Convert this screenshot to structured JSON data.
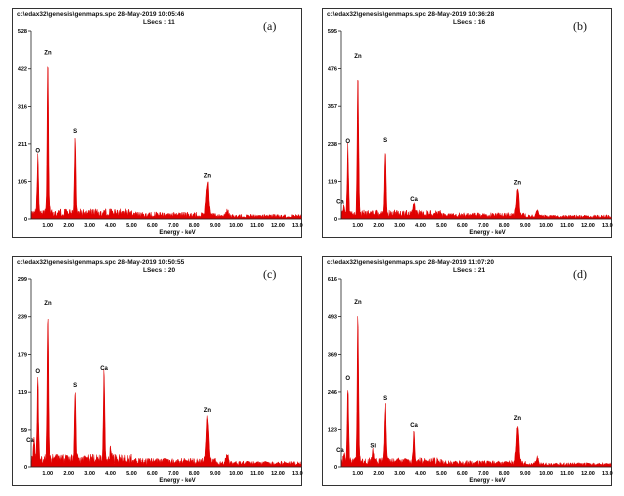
{
  "chart_data": [
    {
      "type": "line",
      "id": "a",
      "panel_label": "(a)",
      "file": "c:\\edax32\\genesis\\genmaps.spc",
      "date": "28-May-2019 10:05:46",
      "lsecs_label": "LSecs : 11",
      "xlabel": "Energy - keV",
      "ylabel": "",
      "xlim": [
        0.2,
        13.1
      ],
      "ylim": [
        0,
        528
      ],
      "yticks": [
        "0",
        "105",
        "211",
        "316",
        "422",
        "528"
      ],
      "xticks": [
        "1.00",
        "2.00",
        "3.00",
        "4.00",
        "5.00",
        "6.00",
        "7.00",
        "8.00",
        "9.00",
        "10.00",
        "11.00",
        "12.00",
        "13.00"
      ],
      "background": 14,
      "peaks": [
        {
          "label": "O",
          "energy": 0.52,
          "counts": 170
        },
        {
          "label": "Zn",
          "energy": 1.01,
          "counts": 445
        },
        {
          "label": "S",
          "energy": 2.31,
          "counts": 225
        },
        {
          "label": "Zn",
          "energy": 8.63,
          "counts": 100
        },
        {
          "label": "",
          "energy": 9.57,
          "counts": 18
        }
      ]
    },
    {
      "type": "line",
      "id": "b",
      "panel_label": "(b)",
      "file": "c:\\edax32\\genesis\\genmaps.spc",
      "date": "28-May-2019 10:36:28",
      "lsecs_label": "LSecs : 16",
      "xlabel": "Energy - keV",
      "ylabel": "",
      "xlim": [
        0.2,
        13.1
      ],
      "ylim": [
        0,
        595
      ],
      "yticks": [
        "0",
        "119",
        "238",
        "357",
        "476",
        "595"
      ],
      "xticks": [
        "1.00",
        "2.00",
        "3.00",
        "4.00",
        "5.00",
        "6.00",
        "7.00",
        "8.00",
        "9.00",
        "10.00",
        "11.00",
        "12.00",
        "13.00"
      ],
      "background": 14,
      "peaks": [
        {
          "label": "Ca",
          "energy": 0.34,
          "counts": 30
        },
        {
          "label": "O",
          "energy": 0.52,
          "counts": 222
        },
        {
          "label": "Zn",
          "energy": 1.01,
          "counts": 490
        },
        {
          "label": "S",
          "energy": 2.31,
          "counts": 225
        },
        {
          "label": "Ca",
          "energy": 3.69,
          "counts": 38
        },
        {
          "label": "Zn",
          "energy": 8.63,
          "counts": 90
        },
        {
          "label": "",
          "energy": 9.57,
          "counts": 20
        }
      ]
    },
    {
      "type": "line",
      "id": "c",
      "panel_label": "(c)",
      "file": "c:\\edax32\\genesis\\genmaps.spc",
      "date": "28-May-2019 10:50:55",
      "lsecs_label": "LSecs : 20",
      "xlabel": "Energy - keV",
      "ylabel": "",
      "xlim": [
        0.2,
        13.1
      ],
      "ylim": [
        0,
        299
      ],
      "yticks": [
        "0",
        "59",
        "119",
        "179",
        "239",
        "299"
      ],
      "xticks": [
        "1.00",
        "2.00",
        "3.00",
        "4.00",
        "5.00",
        "6.00",
        "7.00",
        "8.00",
        "9.00",
        "10.00",
        "11.00",
        "12.00",
        "13.00"
      ],
      "background": 10,
      "peaks": [
        {
          "label": "Ca",
          "energy": 0.34,
          "counts": 30
        },
        {
          "label": "O",
          "energy": 0.52,
          "counts": 140
        },
        {
          "label": "Zn",
          "energy": 1.01,
          "counts": 248
        },
        {
          "label": "S",
          "energy": 2.31,
          "counts": 118
        },
        {
          "label": "Ca",
          "energy": 3.69,
          "counts": 145
        },
        {
          "label": "",
          "energy": 4.01,
          "counts": 20
        },
        {
          "label": "Zn",
          "energy": 8.63,
          "counts": 78
        },
        {
          "label": "",
          "energy": 9.57,
          "counts": 18
        }
      ]
    },
    {
      "type": "line",
      "id": "d",
      "panel_label": "(d)",
      "file": "c:\\edax32\\genesis\\genmaps.spc",
      "date": "28-May-2019 11:07:20",
      "lsecs_label": "LSecs : 21",
      "xlabel": "Energy - keV",
      "ylabel": "",
      "xlim": [
        0.2,
        13.1
      ],
      "ylim": [
        0,
        616
      ],
      "yticks": [
        "0",
        "123",
        "246",
        "369",
        "493",
        "616"
      ],
      "xticks": [
        "1.00",
        "2.00",
        "3.00",
        "4.00",
        "5.00",
        "6.00",
        "7.00",
        "8.00",
        "9.00",
        "10.00",
        "11.00",
        "12.00",
        "13.00"
      ],
      "background": 15,
      "peaks": [
        {
          "label": "Ca",
          "energy": 0.34,
          "counts": 30
        },
        {
          "label": "O",
          "energy": 0.52,
          "counts": 265
        },
        {
          "label": "Zn",
          "energy": 1.01,
          "counts": 515
        },
        {
          "label": "Si",
          "energy": 1.74,
          "counts": 45
        },
        {
          "label": "S",
          "energy": 2.31,
          "counts": 200
        },
        {
          "label": "Ca",
          "energy": 3.69,
          "counts": 112
        },
        {
          "label": "Zn",
          "energy": 8.63,
          "counts": 135
        },
        {
          "label": "",
          "energy": 9.57,
          "counts": 25
        }
      ]
    }
  ]
}
